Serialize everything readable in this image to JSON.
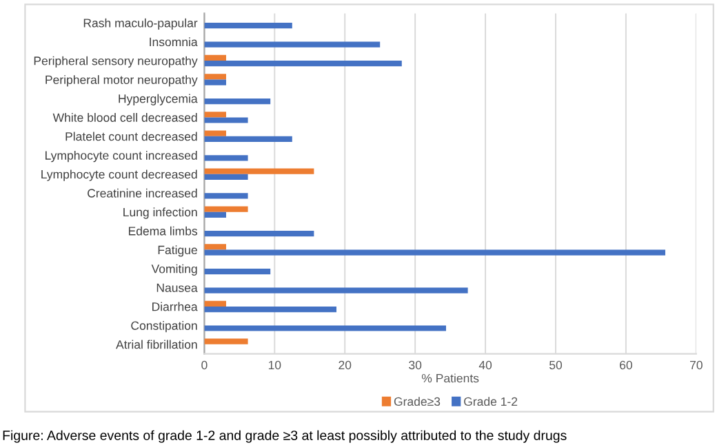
{
  "chart_data": {
    "type": "bar",
    "orientation": "horizontal",
    "categories": [
      "Rash maculo-papular",
      "Insomnia",
      "Peripheral sensory neuropathy",
      "Peripheral motor neuropathy",
      "Hyperglycemia",
      "White blood cell decreased",
      "Platelet count decreased",
      "Lymphocyte count increased",
      "Lymphocyte count decreased",
      "Creatinine increased",
      "Lung infection",
      "Edema limbs",
      "Fatigue",
      "Vomiting",
      "Nausea",
      "Diarrhea",
      "Constipation",
      "Atrial fibrillation"
    ],
    "series": [
      {
        "name": "Grade≥3",
        "color": "#ed7d31",
        "values": [
          null,
          null,
          3.1,
          3.1,
          null,
          3.1,
          3.1,
          null,
          15.6,
          null,
          6.2,
          null,
          3.1,
          null,
          null,
          3.1,
          null,
          6.2
        ]
      },
      {
        "name": "Grade 1-2",
        "color": "#4472c4",
        "values": [
          12.5,
          25.0,
          28.1,
          3.1,
          9.4,
          6.2,
          12.5,
          6.2,
          6.2,
          6.2,
          3.1,
          15.6,
          65.6,
          9.4,
          37.5,
          18.8,
          34.4,
          null
        ]
      }
    ],
    "xlabel": "% Patients",
    "xlim": [
      0,
      70
    ],
    "xticks": [
      0,
      10,
      20,
      30,
      40,
      50,
      60,
      70
    ],
    "grid": "x",
    "legend": "bottom",
    "annotations": [
      "Figure: Adverse events of grade 1-2 and grade ≥3 at least possibly attributed to the study drugs"
    ]
  }
}
